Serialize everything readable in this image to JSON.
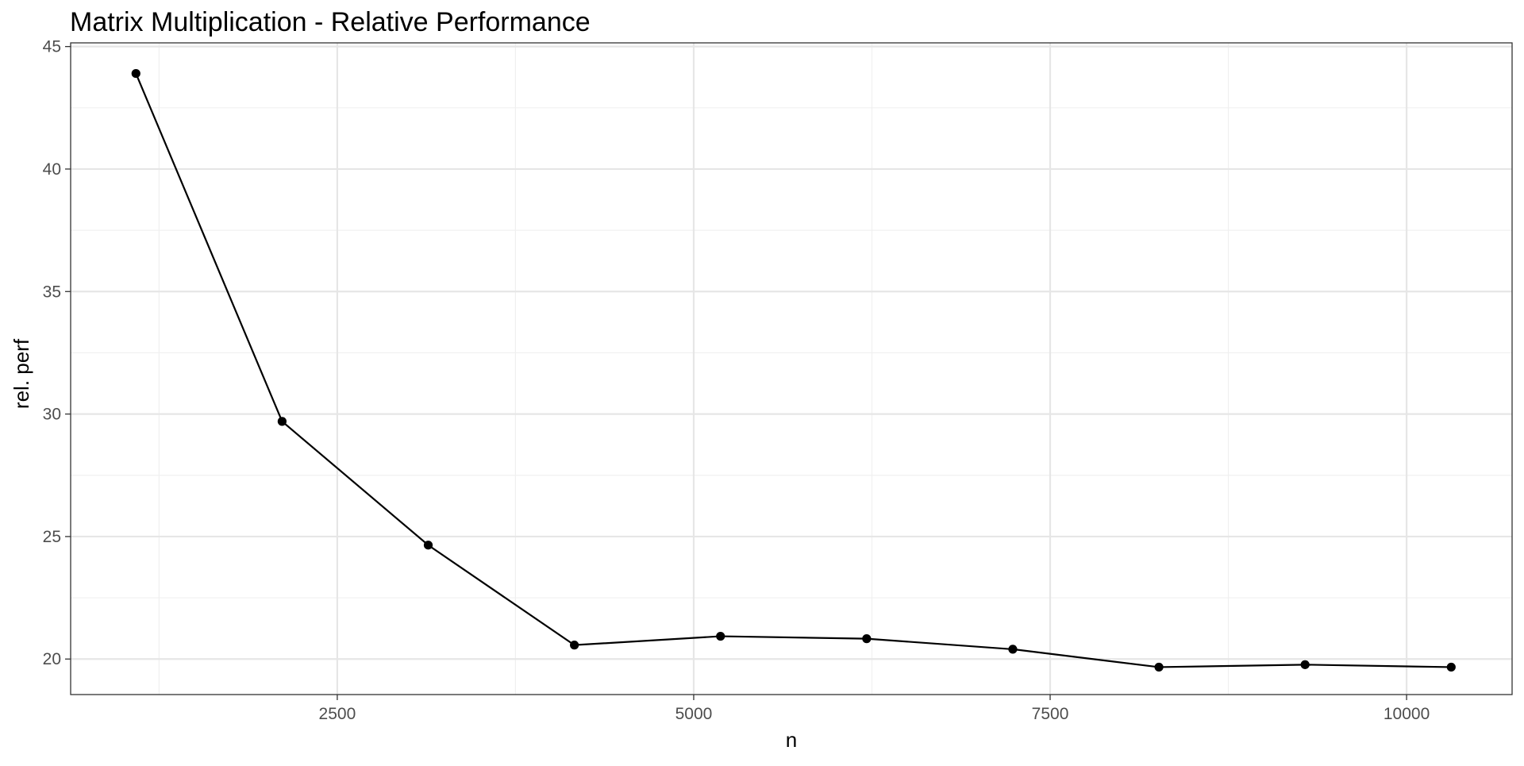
{
  "chart_data": {
    "type": "line",
    "title": "Matrix Multiplication - Relative Performance",
    "xlabel": "n",
    "ylabel": "rel. perf",
    "xlim": [
      630,
      10740
    ],
    "ylim": [
      18.55,
      45.15
    ],
    "x_ticks": [
      2500,
      5000,
      7500,
      10000
    ],
    "y_ticks": [
      20,
      25,
      30,
      35,
      40,
      45
    ],
    "x_minor_ticks": [
      1250,
      3750,
      6250,
      8750
    ],
    "y_minor_ticks": [
      22.5,
      27.5,
      32.5,
      37.5,
      42.5
    ],
    "grid": true,
    "legend": "none",
    "series": [
      {
        "x": [
          1088,
          2113,
          3138,
          4163,
          5188,
          6213,
          7238,
          8263,
          9288,
          10313
        ],
        "y": [
          43.9,
          29.7,
          24.65,
          20.57,
          20.93,
          20.83,
          20.4,
          19.67,
          19.77,
          19.67
        ],
        "color": "#000000"
      }
    ]
  }
}
